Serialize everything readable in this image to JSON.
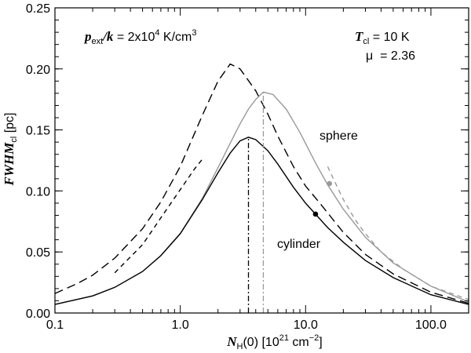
{
  "chart_data": {
    "type": "line",
    "xscale": "log",
    "xlim": [
      0.1,
      200
    ],
    "ylim": [
      0.0,
      0.25
    ],
    "xticks": [
      {
        "value": 0.1,
        "label": "0.1"
      },
      {
        "value": 1,
        "label": "1.0"
      },
      {
        "value": 10,
        "label": "10.0"
      },
      {
        "value": 100,
        "label": "100.0"
      }
    ],
    "yticks": [
      {
        "value": 0.0,
        "label": "0.00"
      },
      {
        "value": 0.05,
        "label": "0.05"
      },
      {
        "value": 0.1,
        "label": "0.10"
      },
      {
        "value": 0.15,
        "label": "0.15"
      },
      {
        "value": 0.2,
        "label": "0.20"
      },
      {
        "value": 0.25,
        "label": "0.25"
      }
    ],
    "xlabel": {
      "sym": "N",
      "sub": "H",
      "rest": "(0) [10",
      "sup": "21",
      "units": " cm",
      "sup2": "−2",
      "close": "]"
    },
    "ylabel": {
      "sym": "FWHM",
      "sub": "cl",
      "rest": " [pc]"
    },
    "annotations": {
      "pressure": {
        "sym": "p",
        "sub": "ext",
        "slash": "/",
        "k": "k",
        "eq": " = 2x10",
        "sup": "4",
        "units": " K/cm",
        "sup2": "3"
      },
      "temperature": {
        "sym": "T",
        "sub": "cl",
        "val": " = 10 K"
      },
      "mu": {
        "sym": "μ",
        "val": "  = 2.36"
      },
      "sphere_label": "sphere",
      "cylinder_label": "cylinder"
    },
    "series": [
      {
        "name": "dashed (black)",
        "style": "long-dash",
        "color": "#000000",
        "x": [
          0.1,
          0.15,
          0.2,
          0.3,
          0.5,
          0.7,
          1.0,
          1.5,
          2.0,
          2.5,
          3.0,
          4.0,
          5.0,
          6.0,
          8.0,
          10.0,
          13.0,
          17.0,
          20.0,
          30.0,
          50.0,
          100.0,
          200.0
        ],
        "y": [
          0.016,
          0.024,
          0.031,
          0.045,
          0.069,
          0.091,
          0.12,
          0.162,
          0.19,
          0.204,
          0.2,
          0.182,
          0.163,
          0.145,
          0.12,
          0.104,
          0.09,
          0.075,
          0.066,
          0.048,
          0.032,
          0.017,
          0.008
        ]
      },
      {
        "name": "sphere (grey)",
        "style": "solid",
        "color": "#999999",
        "x": [
          0.1,
          0.2,
          0.3,
          0.5,
          0.7,
          1.0,
          1.5,
          2.0,
          2.5,
          3.0,
          3.5,
          4.0,
          4.6,
          5.5,
          7.0,
          9.0,
          12.0,
          15.0,
          20.0,
          30.0,
          50.0,
          100.0,
          200.0
        ],
        "y": [
          0.007,
          0.014,
          0.021,
          0.034,
          0.047,
          0.065,
          0.094,
          0.119,
          0.139,
          0.155,
          0.167,
          0.175,
          0.181,
          0.179,
          0.167,
          0.148,
          0.123,
          0.105,
          0.085,
          0.062,
          0.041,
          0.022,
          0.009
        ]
      },
      {
        "name": "cylinder (black)",
        "style": "solid",
        "color": "#000000",
        "x": [
          0.1,
          0.2,
          0.3,
          0.5,
          0.7,
          1.0,
          1.5,
          2.0,
          2.5,
          3.0,
          3.5,
          4.0,
          5.0,
          6.0,
          8.0,
          10.0,
          12.0,
          15.0,
          20.0,
          30.0,
          50.0,
          100.0,
          200.0
        ],
        "y": [
          0.007,
          0.014,
          0.021,
          0.034,
          0.047,
          0.065,
          0.093,
          0.115,
          0.131,
          0.141,
          0.144,
          0.142,
          0.133,
          0.122,
          0.103,
          0.09,
          0.081,
          0.07,
          0.058,
          0.043,
          0.029,
          0.015,
          0.007
        ]
      },
      {
        "name": "sphere approx (grey dashed)",
        "style": "dash",
        "color": "#999999",
        "x": [
          15.0,
          17.0,
          20.0,
          25.0,
          30.0,
          40.0,
          60.0,
          100.0,
          200.0
        ],
        "y": [
          0.12,
          0.108,
          0.093,
          0.076,
          0.065,
          0.05,
          0.036,
          0.022,
          0.011
        ]
      },
      {
        "name": "low-density approx (black dashed)",
        "style": "dash",
        "color": "#000000",
        "x": [
          0.3,
          0.5,
          0.7,
          1.0,
          1.3,
          1.5
        ],
        "y": [
          0.033,
          0.056,
          0.078,
          0.101,
          0.118,
          0.126
        ]
      }
    ],
    "vlines": [
      {
        "name": "cylinder peak",
        "x": 3.5,
        "y0": 0.0,
        "y1": 0.144,
        "style": "dash-dot",
        "color": "#000000"
      },
      {
        "name": "sphere peak",
        "x": 4.6,
        "y0": 0.0,
        "y1": 0.181,
        "style": "dash-dot",
        "color": "#999999"
      }
    ],
    "points": [
      {
        "name": "sphere marker",
        "x": 15.5,
        "y": 0.106,
        "color": "#999999"
      },
      {
        "name": "cylinder marker",
        "x": 12.0,
        "y": 0.081,
        "color": "#000000"
      }
    ]
  }
}
